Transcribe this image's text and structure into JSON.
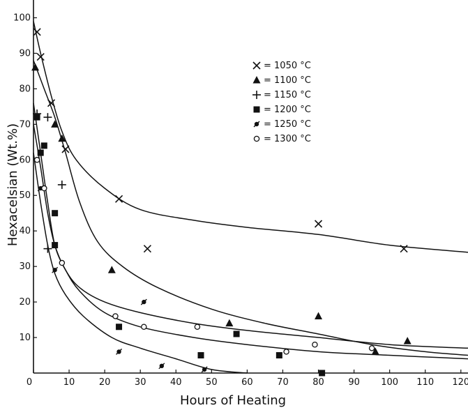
{
  "chart_data": {
    "type": "scatter",
    "xlabel": "Hours of Heating",
    "ylabel": "Hexacelsian (Wt.%)",
    "xlim": [
      0,
      122
    ],
    "ylim": [
      0,
      105
    ],
    "x_ticks": [
      0,
      10,
      20,
      30,
      40,
      50,
      60,
      70,
      80,
      90,
      100,
      110,
      120
    ],
    "y_ticks": [
      0,
      10,
      20,
      30,
      40,
      50,
      60,
      70,
      80,
      90,
      100
    ],
    "legend_position": "top-right",
    "series": [
      {
        "name": "= 1050 °C",
        "marker": "x",
        "points": [
          [
            1,
            96
          ],
          [
            2,
            89
          ],
          [
            5,
            76
          ],
          [
            9,
            63
          ],
          [
            24,
            49
          ],
          [
            32,
            35
          ],
          [
            80,
            42
          ],
          [
            104,
            35
          ]
        ],
        "curve": [
          [
            0,
            99
          ],
          [
            2,
            90
          ],
          [
            5,
            78
          ],
          [
            8,
            68
          ],
          [
            12,
            60
          ],
          [
            20,
            52
          ],
          [
            30,
            46
          ],
          [
            45,
            43
          ],
          [
            60,
            41
          ],
          [
            80,
            39
          ],
          [
            100,
            36
          ],
          [
            122,
            34
          ]
        ]
      },
      {
        "name": "= 1100 °C",
        "marker": "triangle",
        "points": [
          [
            0.5,
            86
          ],
          [
            6,
            70
          ],
          [
            8,
            66
          ],
          [
            22,
            29
          ],
          [
            55,
            14
          ],
          [
            80,
            16
          ],
          [
            96,
            6
          ],
          [
            105,
            9
          ]
        ],
        "curve": [
          [
            0,
            88
          ],
          [
            3,
            80
          ],
          [
            6,
            72
          ],
          [
            9,
            62
          ],
          [
            13,
            48
          ],
          [
            18,
            37
          ],
          [
            25,
            30
          ],
          [
            35,
            24
          ],
          [
            50,
            18
          ],
          [
            65,
            14
          ],
          [
            80,
            11
          ],
          [
            95,
            8
          ],
          [
            110,
            6
          ],
          [
            122,
            5
          ]
        ]
      },
      {
        "name": "= 1150 °C",
        "marker": "plus",
        "points": [
          [
            1,
            73
          ],
          [
            4,
            72
          ],
          [
            8,
            53
          ],
          [
            4,
            35
          ]
        ],
        "curve": []
      },
      {
        "name": "= 1200 °C",
        "marker": "square",
        "points": [
          [
            1,
            72
          ],
          [
            2,
            62
          ],
          [
            3,
            64
          ],
          [
            6,
            45
          ],
          [
            6,
            36
          ],
          [
            24,
            13
          ],
          [
            47,
            5
          ],
          [
            57,
            11
          ],
          [
            69,
            5
          ],
          [
            81,
            0
          ]
        ],
        "curve": [
          [
            0,
            76
          ],
          [
            2,
            62
          ],
          [
            4,
            48
          ],
          [
            6,
            36
          ],
          [
            9,
            29
          ],
          [
            13,
            23
          ],
          [
            20,
            17
          ],
          [
            30,
            13
          ],
          [
            45,
            10
          ],
          [
            60,
            8
          ],
          [
            80,
            6
          ],
          [
            100,
            5
          ],
          [
            122,
            4
          ]
        ]
      },
      {
        "name": "= 1250 °C",
        "marker": "slashed-circle",
        "points": [
          [
            2,
            52
          ],
          [
            6,
            29
          ],
          [
            31,
            20
          ],
          [
            24,
            6
          ],
          [
            36,
            2
          ],
          [
            48,
            1
          ]
        ],
        "curve": [
          [
            0,
            62
          ],
          [
            2,
            48
          ],
          [
            4,
            36
          ],
          [
            6,
            28
          ],
          [
            9,
            22
          ],
          [
            14,
            16
          ],
          [
            22,
            10
          ],
          [
            30,
            7
          ],
          [
            40,
            4
          ],
          [
            50,
            1
          ],
          [
            60,
            0
          ]
        ]
      },
      {
        "name": "= 1300 °C",
        "marker": "circle",
        "points": [
          [
            1,
            60
          ],
          [
            3,
            52
          ],
          [
            8,
            31
          ],
          [
            23,
            16
          ],
          [
            31,
            13
          ],
          [
            46,
            13
          ],
          [
            71,
            6
          ],
          [
            79,
            8
          ],
          [
            95,
            7
          ]
        ],
        "curve": [
          [
            0,
            70
          ],
          [
            2,
            58
          ],
          [
            4,
            45
          ],
          [
            6,
            36
          ],
          [
            9,
            29
          ],
          [
            13,
            24
          ],
          [
            20,
            20
          ],
          [
            30,
            17
          ],
          [
            45,
            14
          ],
          [
            60,
            12
          ],
          [
            80,
            10
          ],
          [
            100,
            8
          ],
          [
            122,
            7
          ]
        ]
      }
    ]
  }
}
